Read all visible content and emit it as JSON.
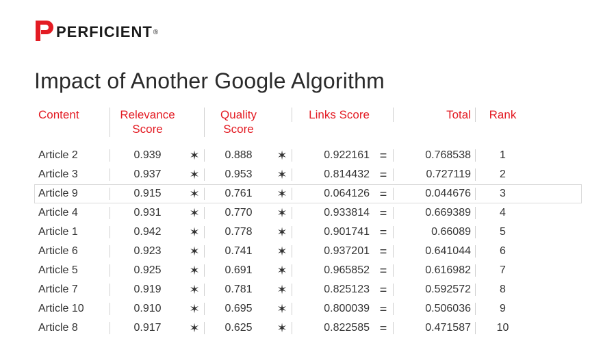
{
  "brand": {
    "name": "PERFICIENT",
    "registered": "®",
    "mark_color": "#e31b23",
    "text_color": "#1a1a1a"
  },
  "title": "Impact of Another Google Algorithm",
  "table": {
    "type": "table",
    "header_color": "#e31b23",
    "text_color": "#333333",
    "divider_color": "#cfcfcf",
    "background_color": "#ffffff",
    "font_size": 16,
    "highlight_row_index": 2,
    "columns": {
      "content": "Content",
      "relevance": "Relevance Score",
      "quality": "Quality Score",
      "links": "Links Score",
      "total": "Total",
      "rank": "Rank"
    },
    "operators": {
      "mult": "✶",
      "eq": "="
    },
    "rows": [
      {
        "content": "Article 2",
        "relevance": "0.939",
        "quality": "0.888",
        "links": "0.922161",
        "total": "0.768538",
        "rank": "1"
      },
      {
        "content": "Article 3",
        "relevance": "0.937",
        "quality": "0.953",
        "links": "0.814432",
        "total": "0.727119",
        "rank": "2"
      },
      {
        "content": "Article 9",
        "relevance": "0.915",
        "quality": "0.761",
        "links": "0.064126",
        "total": "0.044676",
        "rank": "3"
      },
      {
        "content": "Article 4",
        "relevance": "0.931",
        "quality": "0.770",
        "links": "0.933814",
        "total": "0.669389",
        "rank": "4"
      },
      {
        "content": "Article 1",
        "relevance": "0.942",
        "quality": "0.778",
        "links": "0.901741",
        "total": "0.66089",
        "rank": "5"
      },
      {
        "content": "Article 6",
        "relevance": "0.923",
        "quality": "0.741",
        "links": "0.937201",
        "total": "0.641044",
        "rank": "6"
      },
      {
        "content": "Article 5",
        "relevance": "0.925",
        "quality": "0.691",
        "links": "0.965852",
        "total": "0.616982",
        "rank": "7"
      },
      {
        "content": "Article 7",
        "relevance": "0.919",
        "quality": "0.781",
        "links": "0.825123",
        "total": "0.592572",
        "rank": "8"
      },
      {
        "content": "Article 10",
        "relevance": "0.910",
        "quality": "0.695",
        "links": "0.800039",
        "total": "0.506036",
        "rank": "9"
      },
      {
        "content": "Article 8",
        "relevance": "0.917",
        "quality": "0.625",
        "links": "0.822585",
        "total": "0.471587",
        "rank": "10"
      }
    ]
  }
}
